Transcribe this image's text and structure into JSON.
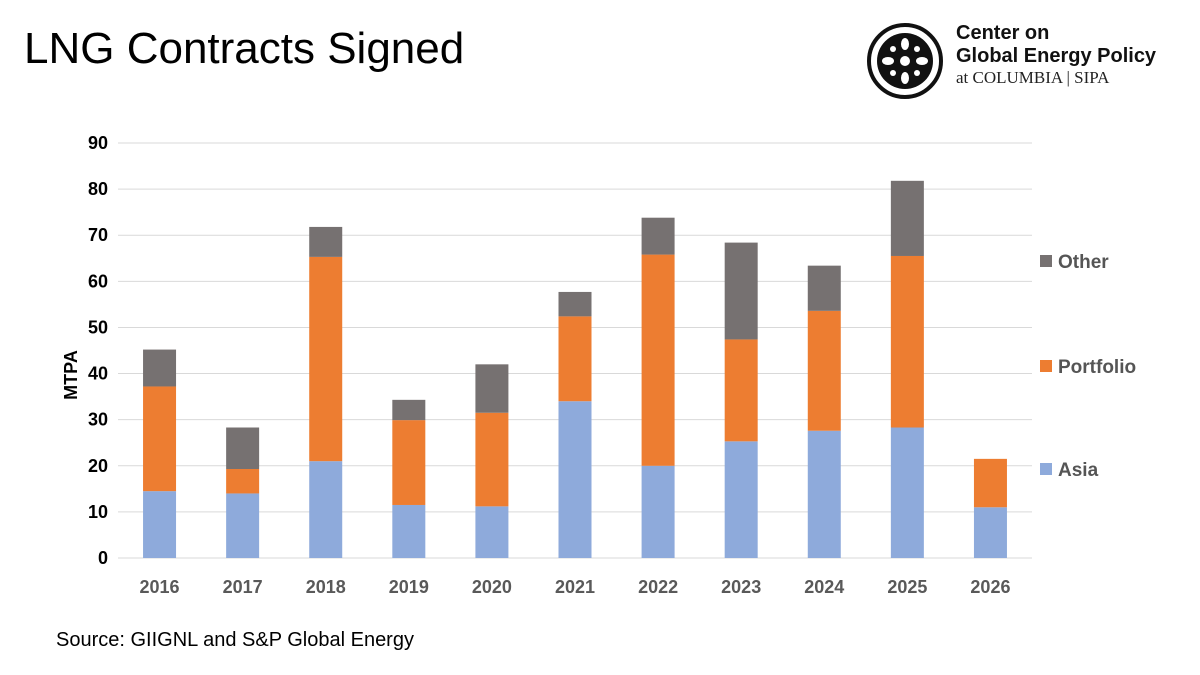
{
  "header": {
    "title": "LNG Contracts Signed"
  },
  "logo": {
    "icon": "globe-seal-icon",
    "line1": "Center on",
    "line2": "Global Energy Policy",
    "line3": "at COLUMBIA | SIPA"
  },
  "footer": {
    "source": "Source: GIIGNL and S&P Global Energy"
  },
  "chart_data": {
    "type": "bar",
    "stacked": true,
    "title": "",
    "xlabel": "",
    "ylabel": "MTPA",
    "ylim": [
      0,
      90
    ],
    "yticks": [
      0,
      10,
      20,
      30,
      40,
      50,
      60,
      70,
      80,
      90
    ],
    "grid": true,
    "legend_position": "right",
    "categories": [
      "2016",
      "2017",
      "2018",
      "2019",
      "2020",
      "2021",
      "2022",
      "2023",
      "2024",
      "2025",
      "2026"
    ],
    "series": [
      {
        "name": "Asia",
        "color": "#8eaadb",
        "values": [
          14.5,
          14,
          21,
          11.5,
          11.2,
          34,
          20,
          25.3,
          27.6,
          28.3,
          11
        ]
      },
      {
        "name": "Portfolio",
        "color": "#ed7d31",
        "values": [
          22.7,
          5.3,
          44.3,
          18.4,
          20.3,
          18.4,
          45.8,
          22.1,
          26,
          37.2,
          10.5
        ]
      },
      {
        "name": "Other",
        "color": "#767171",
        "values": [
          8,
          9,
          6.5,
          4.4,
          10.5,
          5.3,
          8,
          21,
          9.8,
          16.3,
          0
        ]
      }
    ],
    "legend_order": [
      "Other",
      "Portfolio",
      "Asia"
    ]
  }
}
